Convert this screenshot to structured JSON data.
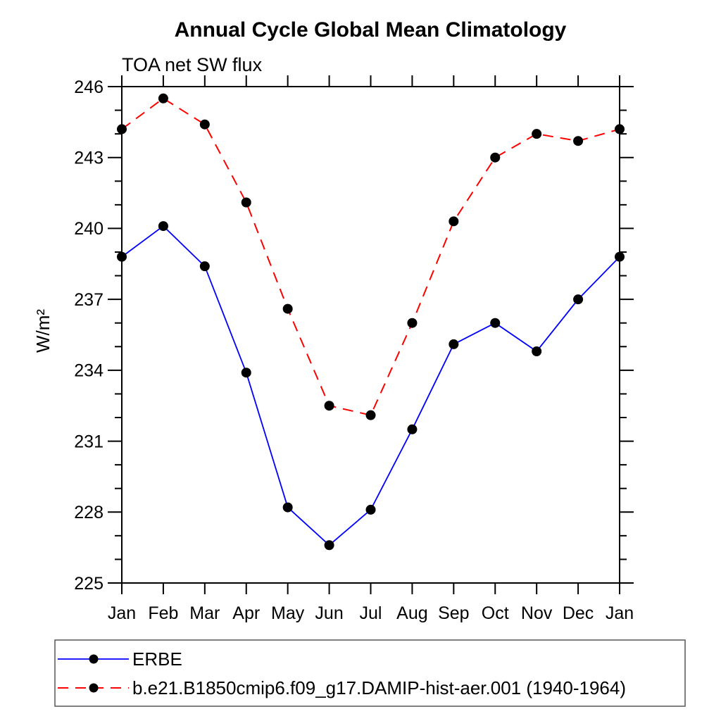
{
  "chart_data": {
    "type": "line",
    "title": "Annual Cycle Global Mean Climatology",
    "subtitle": "TOA net SW flux",
    "ylabel": "W/m²",
    "xlabel": "",
    "x_labels": [
      "Jan",
      "Feb",
      "Mar",
      "Apr",
      "May",
      "Jun",
      "Jul",
      "Aug",
      "Sep",
      "Oct",
      "Nov",
      "Dec",
      "Jan"
    ],
    "ylim": [
      225,
      246
    ],
    "ytick_major": [
      225,
      228,
      231,
      234,
      237,
      240,
      243,
      246
    ],
    "ytick_minor_step": 1,
    "grid": false,
    "legend_position": "bottom-left-box",
    "marker": "filled-circle",
    "marker_color": "#000000",
    "frame_color": "#000000",
    "series": [
      {
        "name": "ERBE",
        "color": "#0000ff",
        "style": "solid",
        "values": [
          238.8,
          240.1,
          238.4,
          233.9,
          228.2,
          226.6,
          228.1,
          231.5,
          235.1,
          236.0,
          234.8,
          237.0,
          238.8
        ]
      },
      {
        "name": "b.e21.B1850cmip6.f09_g17.DAMIP-hist-aer.001 (1940-1964)",
        "color": "#ff0000",
        "style": "dashed",
        "values": [
          244.2,
          245.5,
          244.4,
          241.1,
          236.6,
          232.5,
          232.1,
          236.0,
          240.3,
          243.0,
          244.0,
          243.7,
          244.2
        ]
      }
    ]
  }
}
